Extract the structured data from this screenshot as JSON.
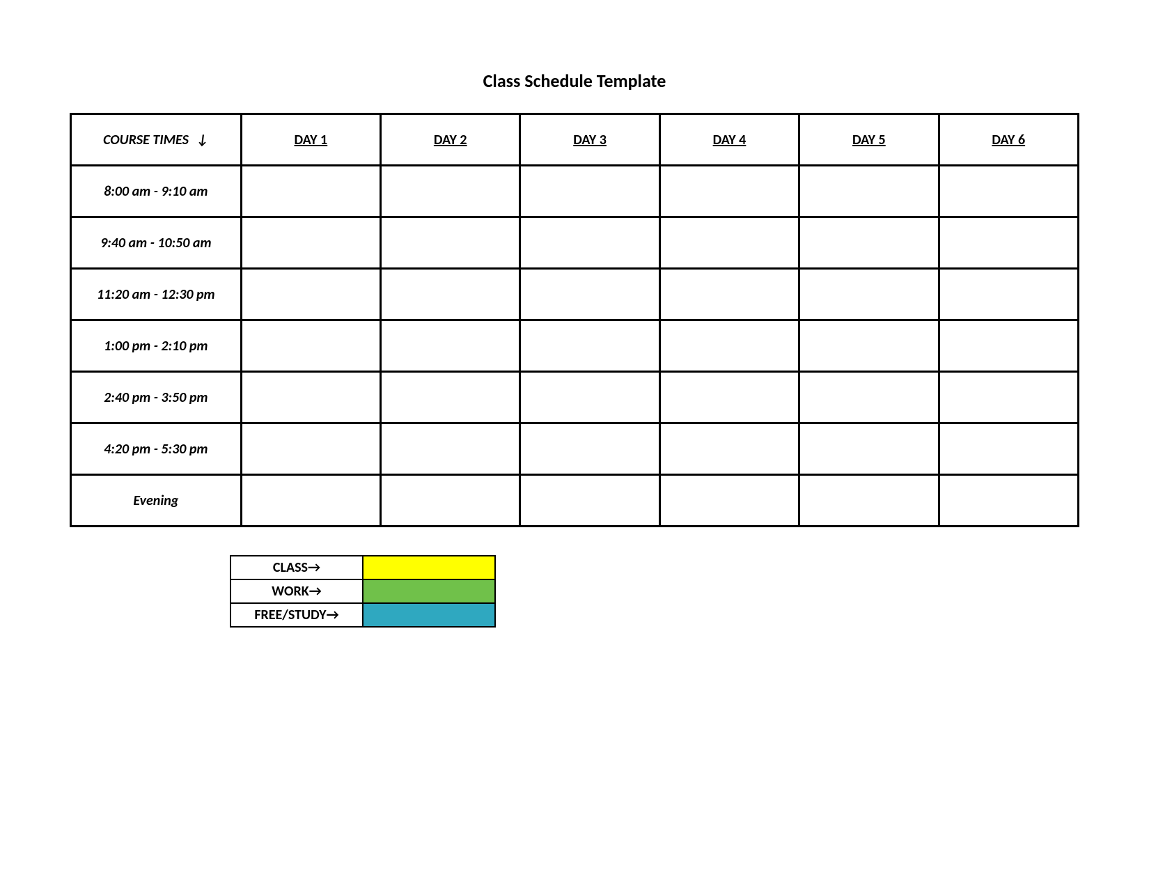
{
  "title": "Class Schedule Template",
  "schedule": {
    "type": "table",
    "header": {
      "times_label": "COURSE TIMES",
      "times_arrow": "↓",
      "days": [
        "DAY 1",
        "DAY 2",
        "DAY 3",
        "DAY 4",
        "DAY 5",
        "DAY 6"
      ]
    },
    "time_slots": [
      "8:00 am - 9:10 am",
      "9:40 am - 10:50 am",
      "11:20 am - 12:30 pm",
      "1:00 pm - 2:10 pm",
      "2:40 pm - 3:50 pm",
      "4:20 pm - 5:30 pm",
      "Evening"
    ],
    "border_color": "#000000",
    "background_color": "#ffffff",
    "header_fontsize": 20,
    "cell_fontsize": 20
  },
  "legend": {
    "items": [
      {
        "label": "CLASS",
        "arrow": "→",
        "color": "#ffff00"
      },
      {
        "label": "WORK",
        "arrow": "→",
        "color": "#70c14a"
      },
      {
        "label": "FREE/STUDY",
        "arrow": "→",
        "color": "#2fa8c0"
      }
    ],
    "border_color": "#000000",
    "label_fontsize": 20
  }
}
